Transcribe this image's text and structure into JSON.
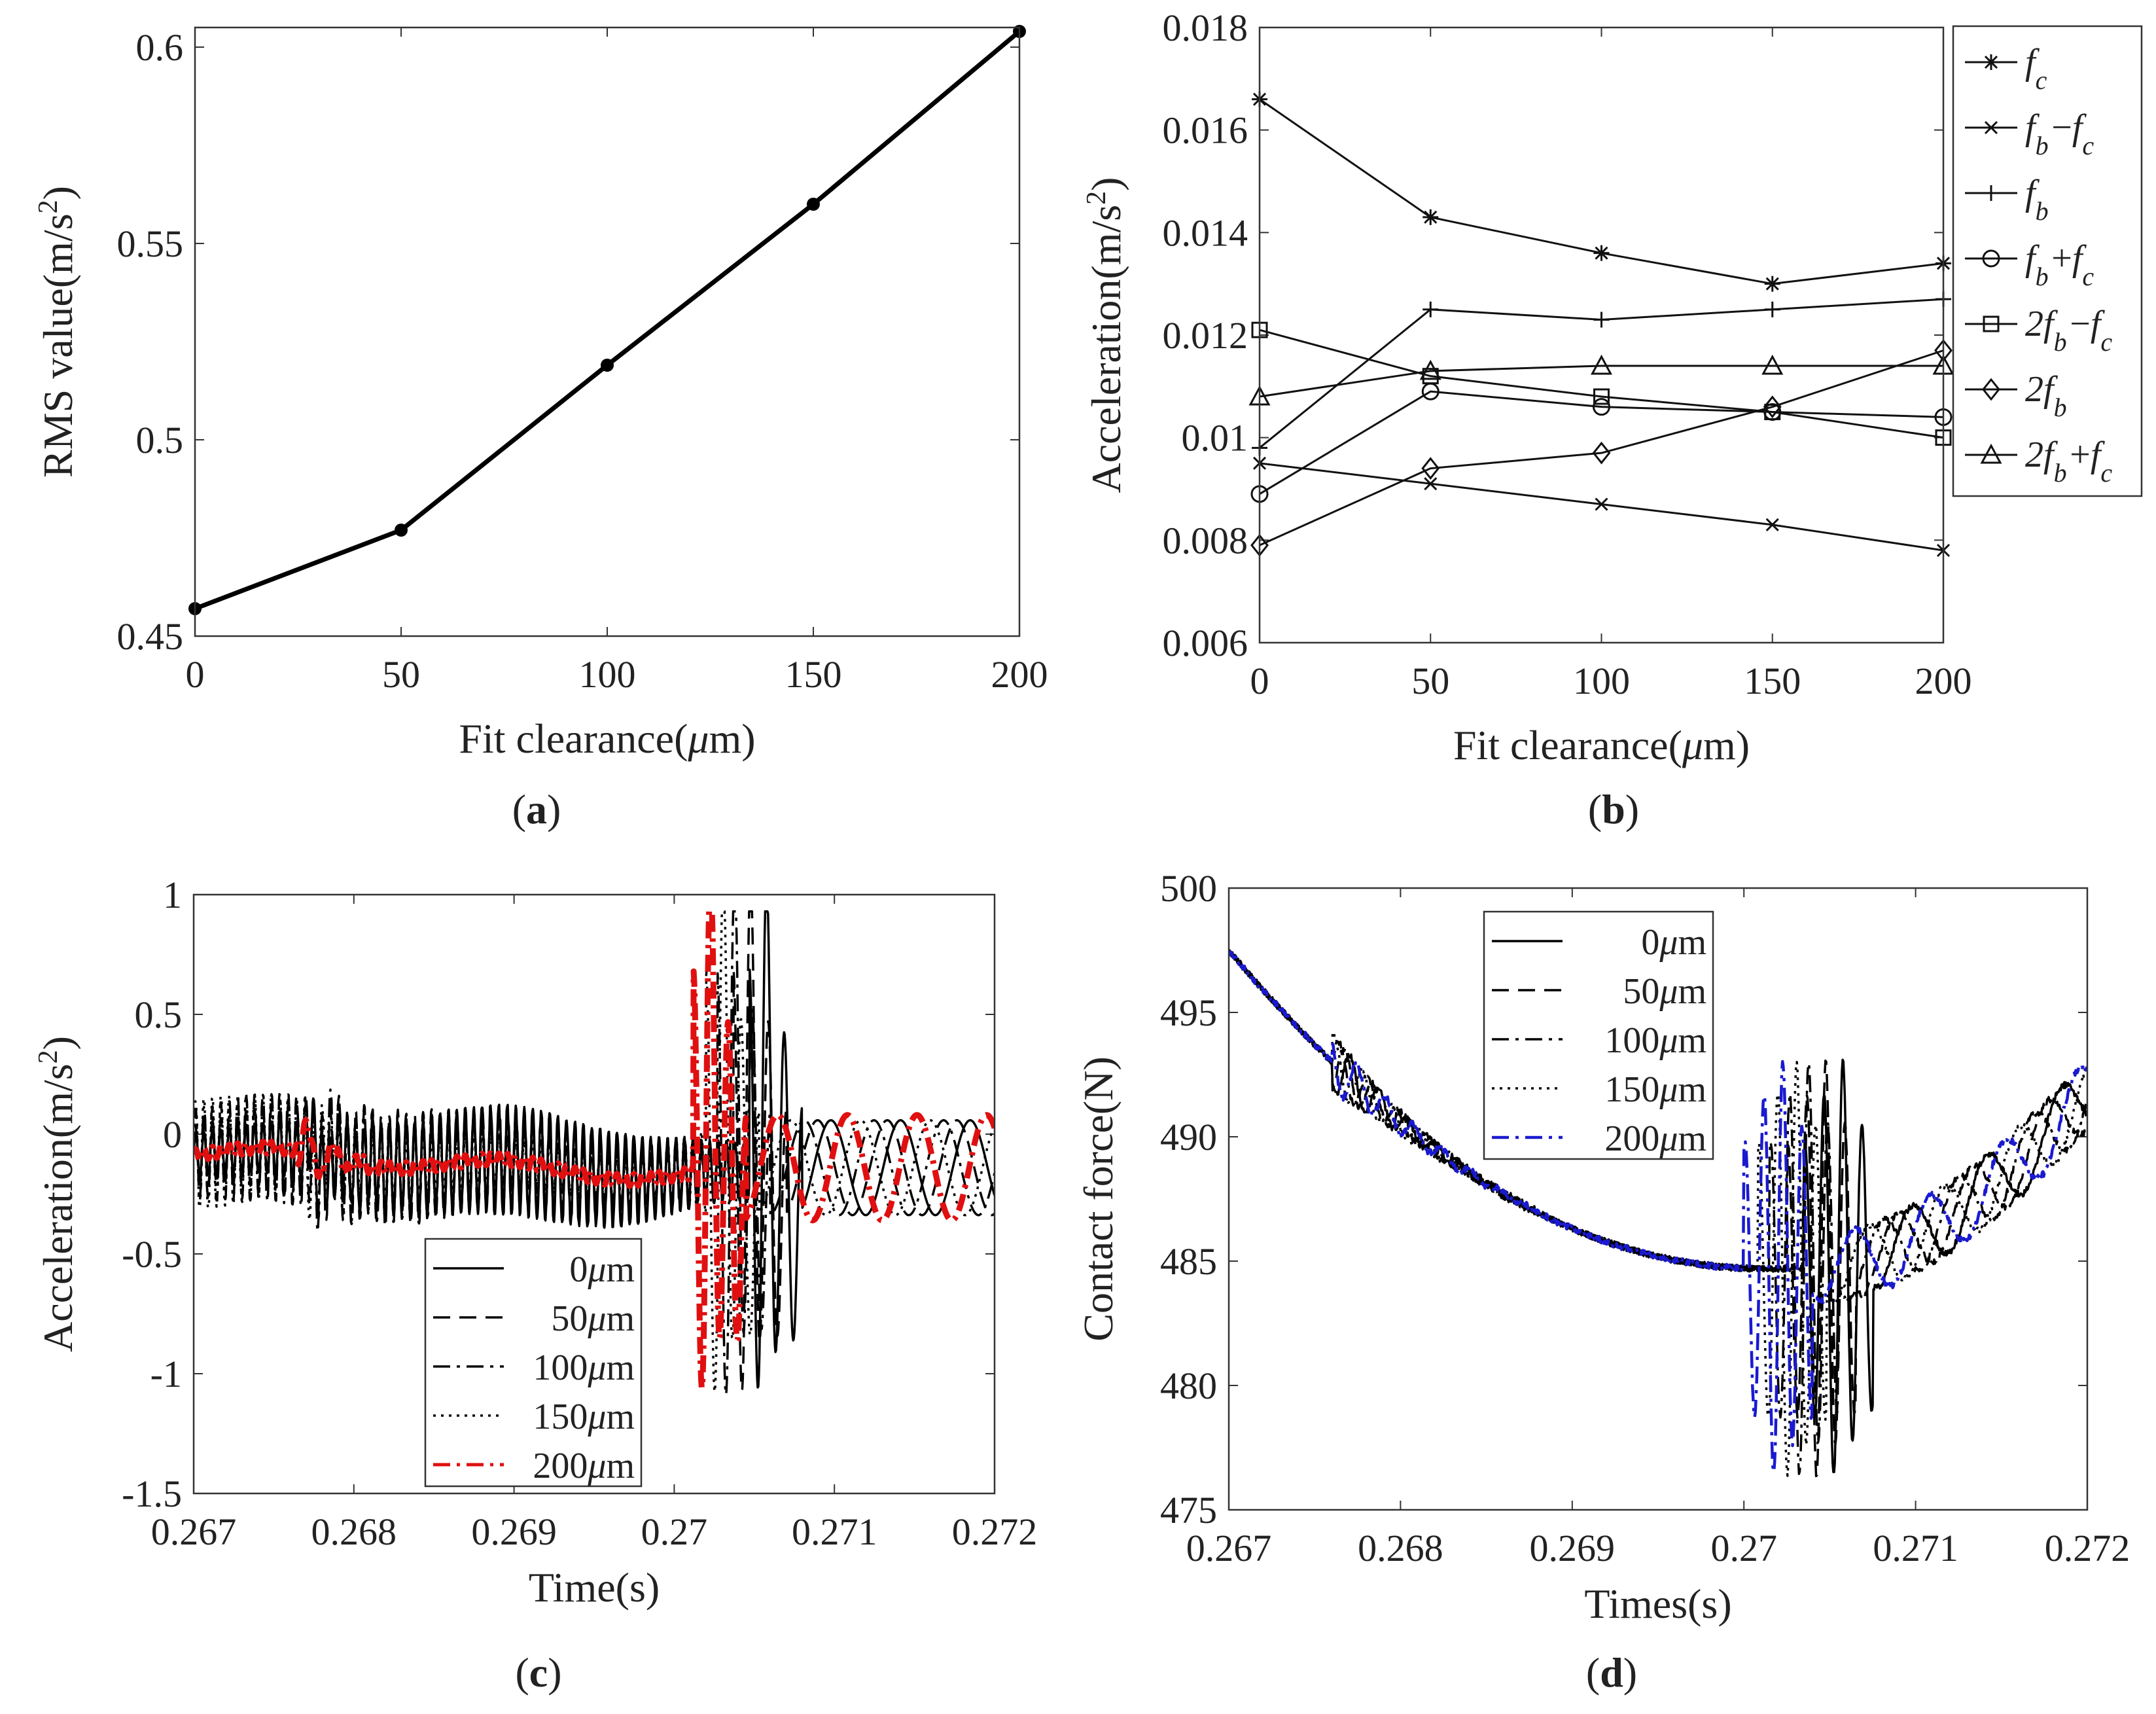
{
  "panels": [
    {
      "id": "a",
      "caption": "(a)"
    },
    {
      "id": "b",
      "caption": "(b)"
    },
    {
      "id": "c",
      "caption": "(c)"
    },
    {
      "id": "d",
      "caption": "(d)"
    }
  ],
  "chart_data": [
    {
      "panel": "a",
      "type": "line",
      "xlabel": "Fit clearance(μm)",
      "ylabel": "RMS value(m/s²)",
      "xlim": [
        0,
        200
      ],
      "ylim": [
        0.45,
        0.605
      ],
      "xticks": [
        0,
        50,
        100,
        150,
        200
      ],
      "xtick_labels": [
        "0",
        "50",
        "100",
        "150",
        "200"
      ],
      "yticks": [
        0.45,
        0.5,
        0.55,
        0.6
      ],
      "ytick_labels": [
        "0.45",
        "0.5",
        "0.55",
        "0.6"
      ],
      "series": [
        {
          "x": [
            0,
            50,
            100,
            150,
            200
          ],
          "values": [
            0.457,
            0.477,
            0.519,
            0.56,
            0.604
          ],
          "color": "#000000",
          "marker": "dot"
        }
      ]
    },
    {
      "panel": "b",
      "type": "line",
      "xlabel": "Fit clearance(μm)",
      "ylabel": "Acceleration(m/s²)",
      "xlim": [
        0,
        200
      ],
      "ylim": [
        0.006,
        0.018
      ],
      "xticks": [
        0,
        50,
        100,
        150,
        200
      ],
      "xtick_labels": [
        "0",
        "50",
        "100",
        "150",
        "200"
      ],
      "yticks": [
        0.006,
        0.008,
        0.01,
        0.012,
        0.014,
        0.016,
        0.018
      ],
      "ytick_labels": [
        "0.006",
        "0.008",
        "0.01",
        "0.012",
        "0.014",
        "0.016",
        "0.018"
      ],
      "legend_position": "outside-right",
      "series": [
        {
          "name": "fc",
          "marker": "star",
          "x": [
            0,
            50,
            100,
            150,
            200
          ],
          "values": [
            0.0166,
            0.0143,
            0.0136,
            0.013,
            0.0134
          ]
        },
        {
          "name": "fb−fc",
          "marker": "x",
          "x": [
            0,
            50,
            100,
            150,
            200
          ],
          "values": [
            0.0095,
            0.0091,
            0.0087,
            0.0083,
            0.0078
          ]
        },
        {
          "name": "fb",
          "marker": "plus",
          "x": [
            0,
            50,
            100,
            150,
            200
          ],
          "values": [
            0.0098,
            0.0125,
            0.0123,
            0.0125,
            0.0127
          ]
        },
        {
          "name": "fb+fc",
          "marker": "circle",
          "x": [
            0,
            50,
            100,
            150,
            200
          ],
          "values": [
            0.0089,
            0.0109,
            0.0106,
            0.0105,
            0.0104
          ]
        },
        {
          "name": "2fb−fc",
          "marker": "square",
          "x": [
            0,
            50,
            100,
            150,
            200
          ],
          "values": [
            0.0121,
            0.0112,
            0.0108,
            0.0105,
            0.01
          ]
        },
        {
          "name": "2fb",
          "marker": "diamond",
          "x": [
            0,
            50,
            100,
            150,
            200
          ],
          "values": [
            0.0079,
            0.0094,
            0.0097,
            0.0106,
            0.0117
          ]
        },
        {
          "name": "2fb+fc",
          "marker": "triangle",
          "x": [
            0,
            50,
            100,
            150,
            200
          ],
          "values": [
            0.0108,
            0.0113,
            0.0114,
            0.0114,
            0.0114
          ]
        }
      ]
    },
    {
      "panel": "c",
      "type": "line",
      "xlabel": "Time(s)",
      "ylabel": "Acceleration(m/s²)",
      "xlim": [
        0.267,
        0.272
      ],
      "ylim": [
        -1.5,
        1
      ],
      "xticks": [
        0.267,
        0.268,
        0.269,
        0.27,
        0.271,
        0.272
      ],
      "xtick_labels": [
        "0.267",
        "0.268",
        "0.269",
        "0.27",
        "0.271",
        "0.272"
      ],
      "yticks": [
        -1.5,
        -1,
        -0.5,
        0,
        0.5,
        1
      ],
      "ytick_labels": [
        "-1.5",
        "-1",
        "-0.5",
        "0",
        "0.5",
        "1"
      ],
      "legend_position": "lower-center",
      "series": [
        {
          "name": "0μm",
          "style": "solid",
          "color": "#000000",
          "width": 3.5,
          "impact_time": 0.27055,
          "post_freq": 2300,
          "post_phase": 0.0,
          "noise_seed": 11
        },
        {
          "name": "50μm",
          "style": "dashed",
          "color": "#000000",
          "width": 3.5,
          "impact_time": 0.27045,
          "post_freq": 2300,
          "post_phase": 1.2,
          "noise_seed": 23
        },
        {
          "name": "100μm",
          "style": "dashdot",
          "color": "#000000",
          "width": 3.5,
          "impact_time": 0.27035,
          "post_freq": 2300,
          "post_phase": 2.4,
          "noise_seed": 37
        },
        {
          "name": "150μm",
          "style": "dotted",
          "color": "#000000",
          "width": 3.5,
          "impact_time": 0.27028,
          "post_freq": 2300,
          "post_phase": 3.6,
          "noise_seed": 41
        },
        {
          "name": "200μm",
          "style": "dashdot",
          "color": "#e01010",
          "width": 9,
          "impact_time": 0.2702,
          "post_freq": 2300,
          "post_phase": 4.8,
          "noise_seed": 53
        }
      ]
    },
    {
      "panel": "d",
      "type": "line",
      "xlabel": "Times(s)",
      "ylabel": "Contact force(N)",
      "xlim": [
        0.267,
        0.272
      ],
      "ylim": [
        475,
        500
      ],
      "xticks": [
        0.267,
        0.268,
        0.269,
        0.27,
        0.271,
        0.272
      ],
      "xtick_labels": [
        "0.267",
        "0.268",
        "0.269",
        "0.27",
        "0.271",
        "0.272"
      ],
      "yticks": [
        475,
        480,
        485,
        490,
        495,
        500
      ],
      "ytick_labels": [
        "475",
        "480",
        "485",
        "490",
        "495",
        "500"
      ],
      "legend_position": "top-left",
      "series": [
        {
          "name": "0μm",
          "style": "solid",
          "color": "#000000",
          "width": 3.5,
          "impact_time": 0.27055,
          "phase": 0.0,
          "noise_seed": 11
        },
        {
          "name": "50μm",
          "style": "dashed",
          "color": "#000000",
          "width": 3.5,
          "impact_time": 0.27045,
          "phase": 1.2,
          "noise_seed": 23
        },
        {
          "name": "100μm",
          "style": "dashdot",
          "color": "#000000",
          "width": 3.5,
          "impact_time": 0.27035,
          "phase": 2.4,
          "noise_seed": 37
        },
        {
          "name": "150μm",
          "style": "dotted",
          "color": "#000000",
          "width": 3.5,
          "impact_time": 0.27028,
          "phase": 3.6,
          "noise_seed": 41
        },
        {
          "name": "200μm",
          "style": "dashdot",
          "color": "#1a1ad0",
          "width": 4.5,
          "impact_time": 0.2702,
          "phase": 4.8,
          "noise_seed": 53
        }
      ]
    }
  ]
}
